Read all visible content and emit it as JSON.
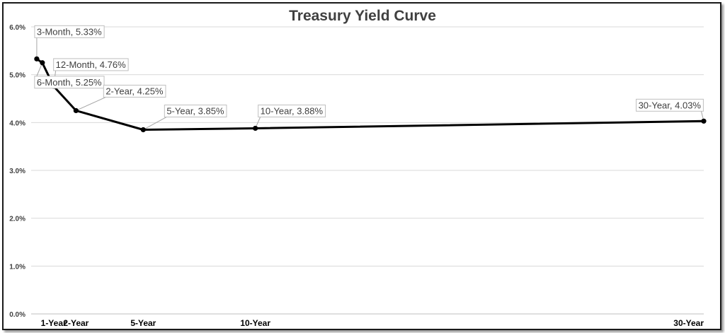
{
  "chart_data": {
    "type": "line",
    "title": "Treasury Yield Curve",
    "x": [
      0.25,
      0.5,
      1,
      2,
      5,
      10,
      30
    ],
    "y": [
      5.33,
      5.25,
      4.76,
      4.25,
      3.85,
      3.88,
      4.03
    ],
    "point_labels": [
      "3-Month, 5.33%",
      "6-Month, 5.25%",
      "12-Month, 4.76%",
      "2-Year, 4.25%",
      "5-Year, 3.85%",
      "10-Year, 3.88%",
      "30-Year, 4.03%"
    ],
    "xticks": [
      {
        "value": 1,
        "label": "1-Year"
      },
      {
        "value": 2,
        "label": "2-Year"
      },
      {
        "value": 5,
        "label": "5-Year"
      },
      {
        "value": 10,
        "label": "10-Year"
      },
      {
        "value": 30,
        "label": "30-Year"
      }
    ],
    "yticks": [
      {
        "value": 0,
        "label": "0.0%"
      },
      {
        "value": 1,
        "label": "1.0%"
      },
      {
        "value": 2,
        "label": "2.0%"
      },
      {
        "value": 3,
        "label": "3.0%"
      },
      {
        "value": 4,
        "label": "4.0%"
      },
      {
        "value": 5,
        "label": "5.0%"
      },
      {
        "value": 6,
        "label": "6.0%"
      }
    ],
    "xlim": [
      0,
      30
    ],
    "ylim": [
      0,
      6
    ],
    "xlabel": "",
    "ylabel": "",
    "grid": true,
    "legend": "none",
    "line_color": "#000000"
  }
}
